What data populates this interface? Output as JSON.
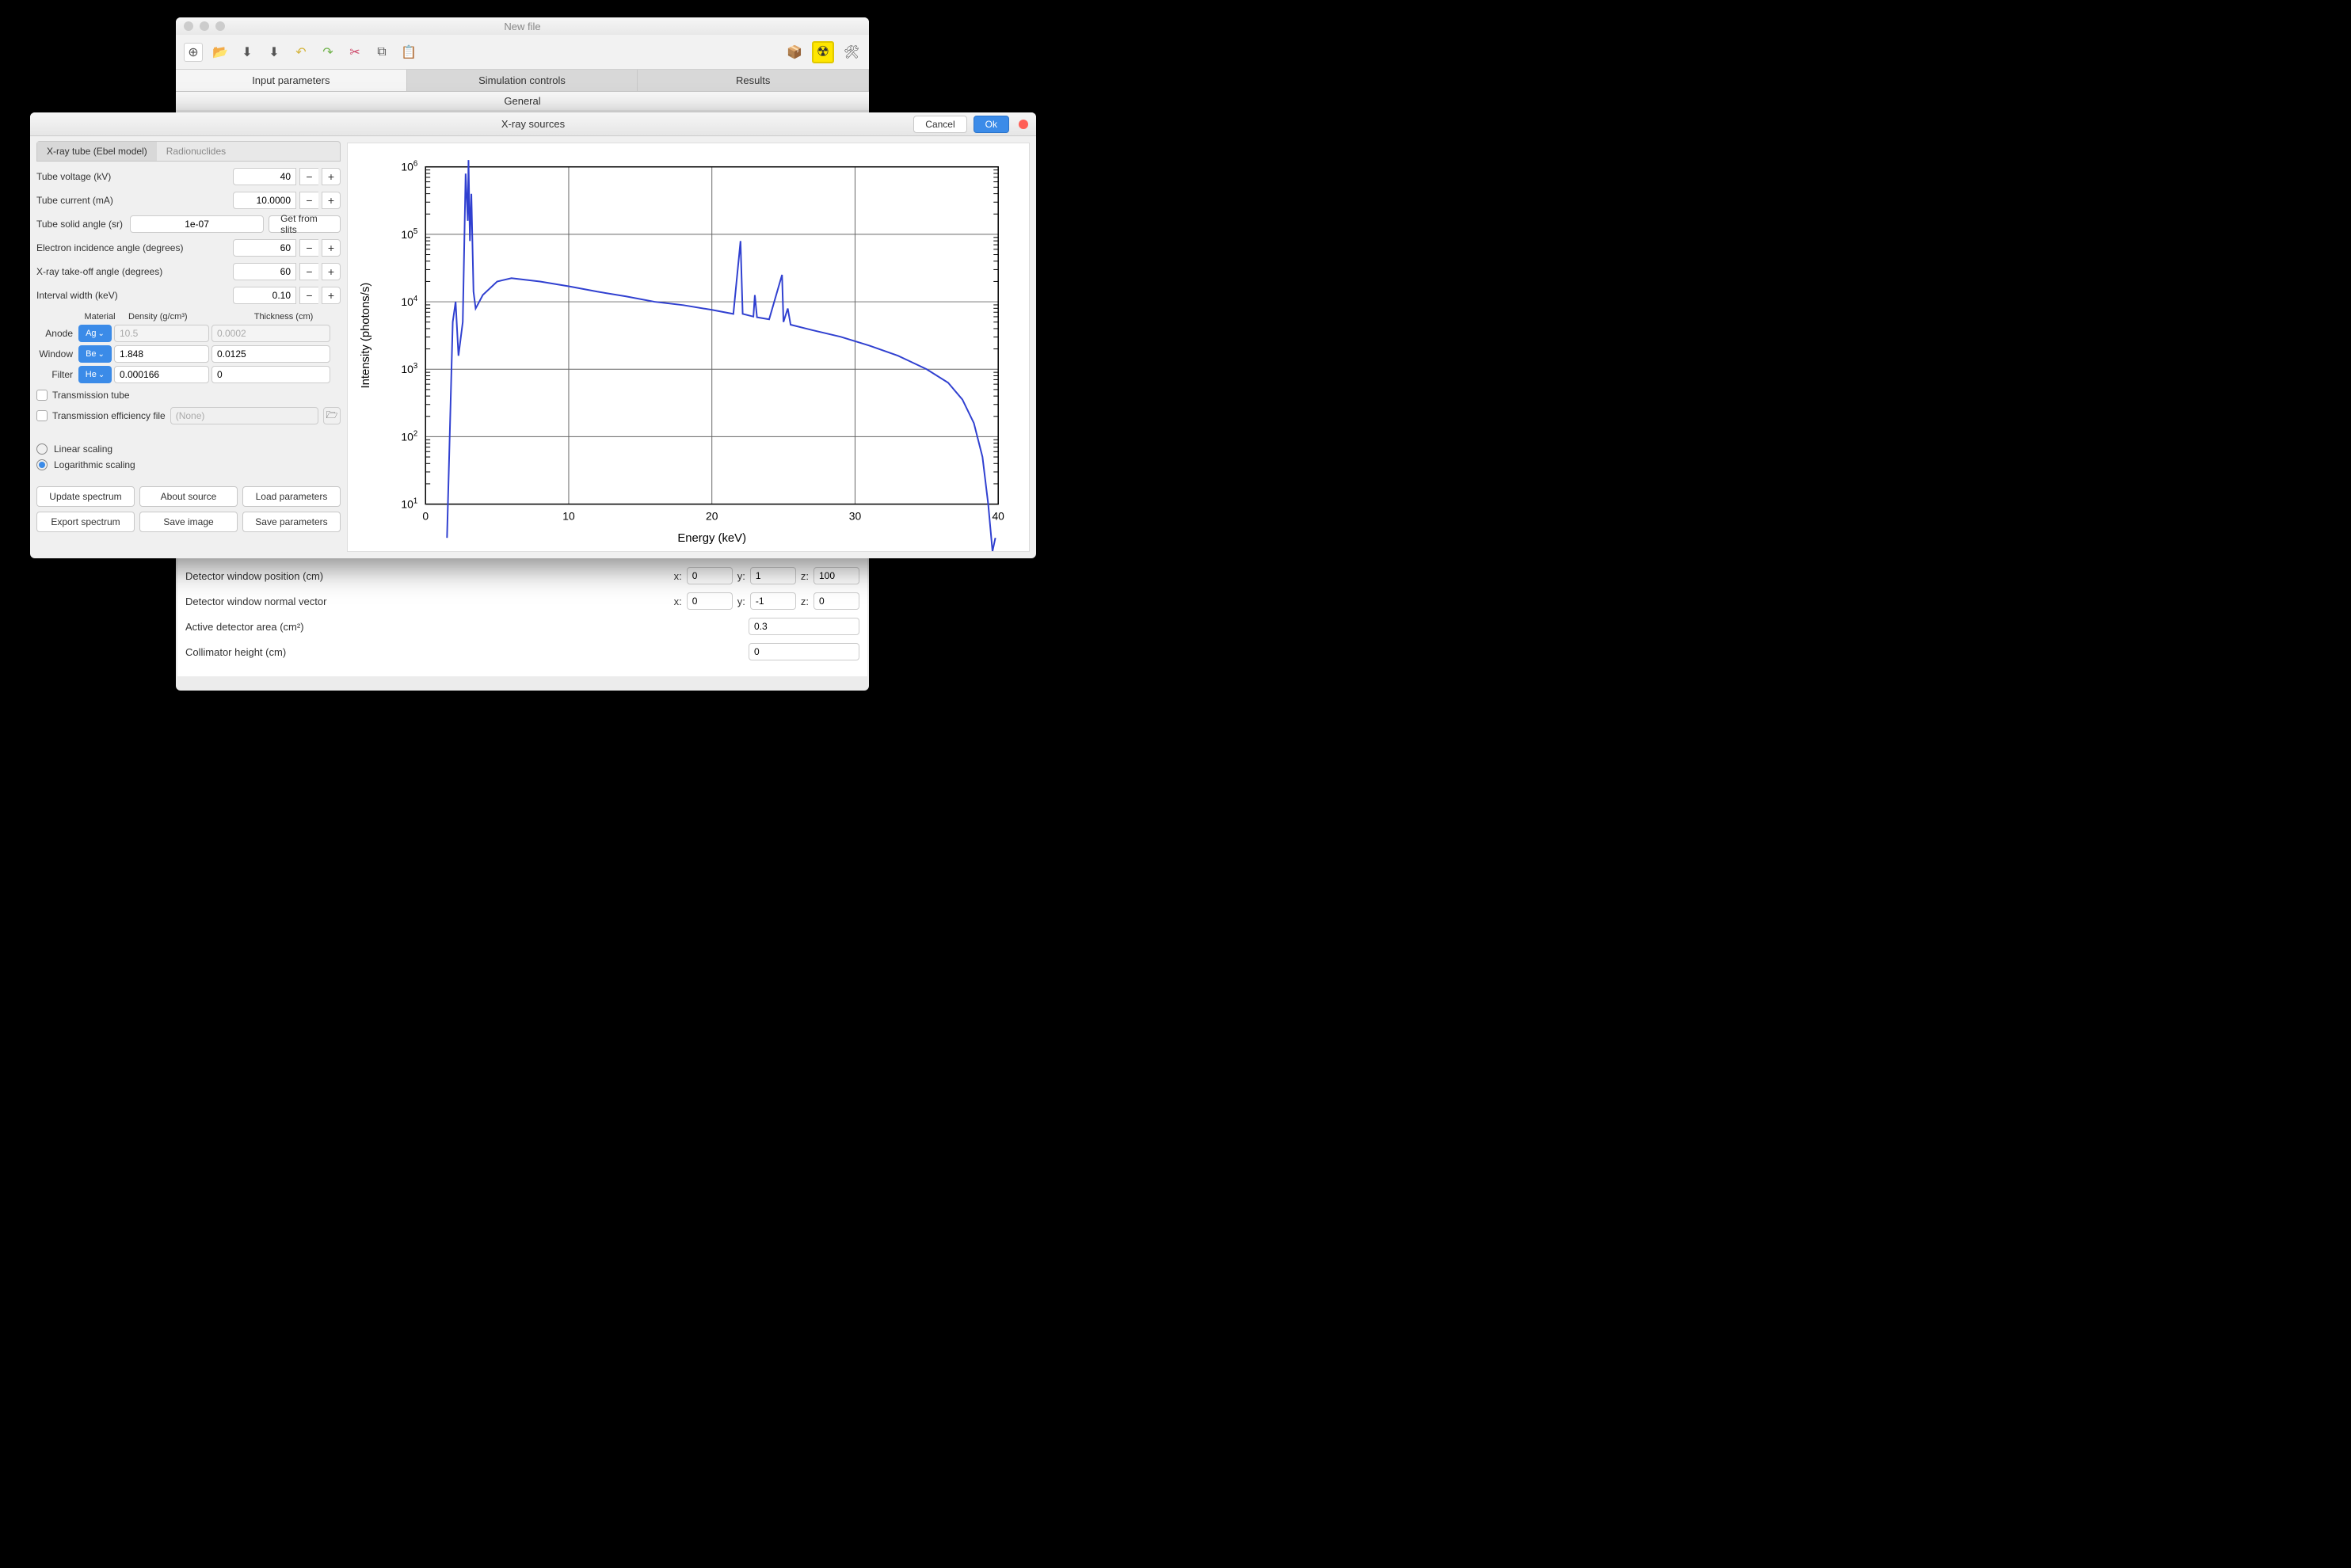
{
  "main_window": {
    "title": "New file",
    "tabs": [
      "Input parameters",
      "Simulation controls",
      "Results"
    ],
    "active_tab": 0,
    "section": "General",
    "params": {
      "detector_window_position": {
        "label": "Detector window position (cm)",
        "x": "0",
        "y": "1",
        "z": "100"
      },
      "detector_window_normal": {
        "label": "Detector window normal vector",
        "x": "0",
        "y": "-1",
        "z": "0"
      },
      "active_area": {
        "label": "Active detector area (cm²)",
        "value": "0.3"
      },
      "collimator_height": {
        "label": "Collimator height (cm)",
        "value": "0"
      }
    }
  },
  "dialog": {
    "title": "X-ray sources",
    "cancel": "Cancel",
    "ok": "Ok",
    "subtabs": [
      "X-ray tube (Ebel model)",
      "Radionuclides"
    ],
    "active_subtab": 0,
    "fields": {
      "tube_voltage": {
        "label": "Tube voltage (kV)",
        "value": "40"
      },
      "tube_current": {
        "label": "Tube current (mA)",
        "value": "10.0000"
      },
      "solid_angle": {
        "label": "Tube solid angle (sr)",
        "value": "1e-07",
        "button": "Get from slits"
      },
      "e_incidence": {
        "label": "Electron incidence angle (degrees)",
        "value": "60"
      },
      "takeoff": {
        "label": "X-ray take-off angle (degrees)",
        "value": "60"
      },
      "interval": {
        "label": "Interval width (keV)",
        "value": "0.10"
      }
    },
    "materials": {
      "headers": [
        "",
        "Material",
        "Density (g/cm³)",
        "Thickness (cm)"
      ],
      "rows": [
        {
          "label": "Anode",
          "mat": "Ag",
          "density": "10.5",
          "thickness": "0.0002",
          "density_editable": false,
          "thickness_editable": false
        },
        {
          "label": "Window",
          "mat": "Be",
          "density": "1.848",
          "thickness": "0.0125",
          "density_editable": true,
          "thickness_editable": true
        },
        {
          "label": "Filter",
          "mat": "He",
          "density": "0.000166",
          "thickness": "0",
          "density_editable": true,
          "thickness_editable": true
        }
      ]
    },
    "transmission_tube": "Transmission tube",
    "efficiency_file": {
      "label": "Transmission efficiency file",
      "placeholder": "(None)"
    },
    "scaling": {
      "linear": "Linear scaling",
      "log": "Logarithmic scaling",
      "selected": "log"
    },
    "actions": {
      "update": "Update spectrum",
      "about": "About source",
      "load": "Load parameters",
      "export": "Export spectrum",
      "save_img": "Save image",
      "save_params": "Save parameters"
    }
  },
  "chart": {
    "type": "line-log",
    "xlabel": "Energy (keV)",
    "ylabel": "Intensity (photons/s)",
    "xlim": [
      0,
      40
    ],
    "xtick_step": 10,
    "ylim_exp": [
      1,
      6
    ],
    "line_color": "#3040d0",
    "grid_color": "#666666",
    "background": "#ffffff",
    "data": [
      [
        1.5,
        0.5
      ],
      [
        1.9,
        3.7
      ],
      [
        2.1,
        4.0
      ],
      [
        2.3,
        3.2
      ],
      [
        2.6,
        3.7
      ],
      [
        2.8,
        5.9
      ],
      [
        2.95,
        5.2
      ],
      [
        3.0,
        6.1
      ],
      [
        3.1,
        4.9
      ],
      [
        3.2,
        5.6
      ],
      [
        3.35,
        4.15
      ],
      [
        3.5,
        3.9
      ],
      [
        4.0,
        4.1
      ],
      [
        5.0,
        4.3
      ],
      [
        6.0,
        4.35
      ],
      [
        8.0,
        4.3
      ],
      [
        10.0,
        4.23
      ],
      [
        12.0,
        4.15
      ],
      [
        14.0,
        4.08
      ],
      [
        16.0,
        4.0
      ],
      [
        18.0,
        3.95
      ],
      [
        20.0,
        3.88
      ],
      [
        21.5,
        3.82
      ],
      [
        22.0,
        4.9
      ],
      [
        22.15,
        3.82
      ],
      [
        22.9,
        3.78
      ],
      [
        23.0,
        4.1
      ],
      [
        23.15,
        3.77
      ],
      [
        24.0,
        3.74
      ],
      [
        24.9,
        4.4
      ],
      [
        25.0,
        3.7
      ],
      [
        25.3,
        3.9
      ],
      [
        25.5,
        3.66
      ],
      [
        27.0,
        3.58
      ],
      [
        29.0,
        3.48
      ],
      [
        31.0,
        3.35
      ],
      [
        33.0,
        3.2
      ],
      [
        35.0,
        3.0
      ],
      [
        36.5,
        2.8
      ],
      [
        37.5,
        2.55
      ],
      [
        38.3,
        2.2
      ],
      [
        38.9,
        1.7
      ],
      [
        39.3,
        1.0
      ],
      [
        39.6,
        0.3
      ],
      [
        39.8,
        0.5
      ]
    ]
  }
}
